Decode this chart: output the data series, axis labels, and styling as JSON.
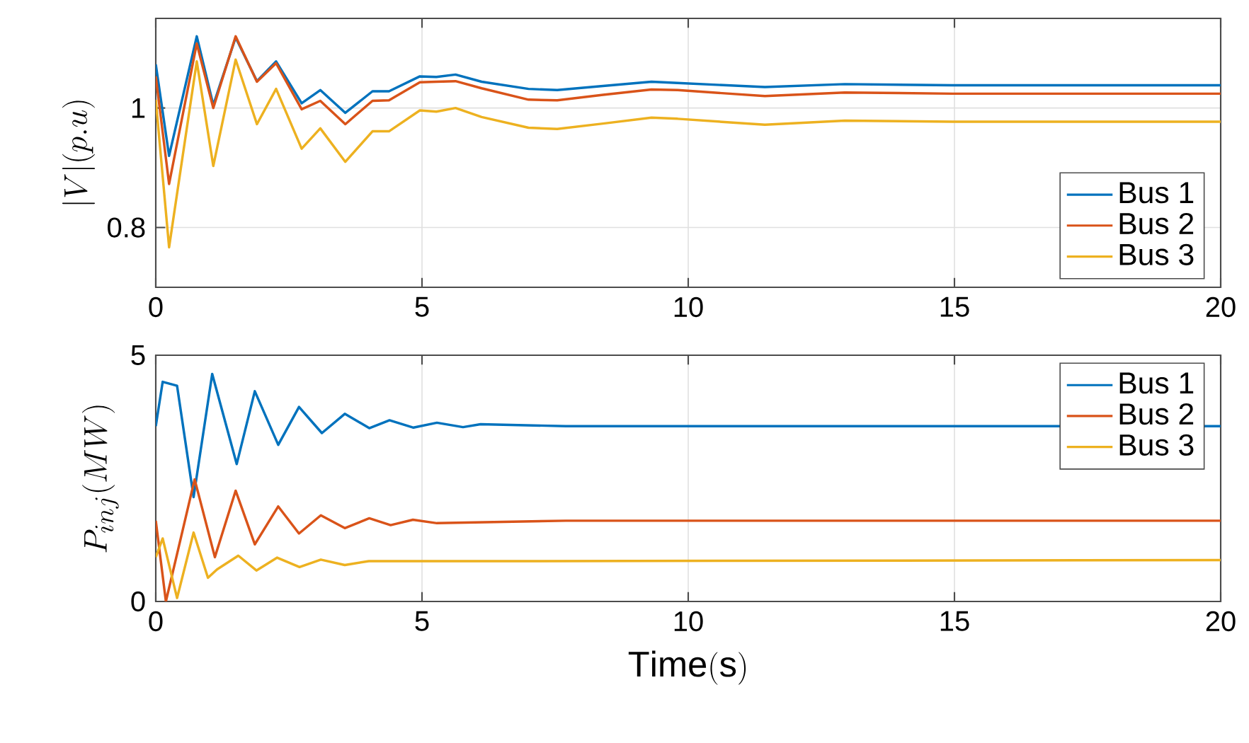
{
  "chart_data": [
    {
      "type": "line",
      "ylabel": "|V|(p.u)",
      "xlim": [
        0,
        20
      ],
      "ylim": [
        0.7,
        1.15
      ],
      "xticks": [
        0,
        5,
        10,
        15,
        20
      ],
      "yticks": [
        0.8,
        1
      ],
      "grid": true,
      "legend": "bottom right",
      "line_style": "solid",
      "x": [
        0,
        0.25,
        0.77,
        1.08,
        1.5,
        1.9,
        2.26,
        2.74,
        3.09,
        3.56,
        4.07,
        4.38,
        4.96,
        5.27,
        5.63,
        6.12,
        7.0,
        7.54,
        8.4,
        9.31,
        9.8,
        11.44,
        12.94,
        14.97,
        20
      ],
      "series": [
        {
          "name": "Bus 1",
          "color": "#0072bd",
          "values": [
            1.073,
            0.92,
            1.12,
            1.005,
            1.118,
            1.045,
            1.078,
            1.008,
            1.03,
            0.992,
            1.028,
            1.028,
            1.053,
            1.052,
            1.056,
            1.044,
            1.032,
            1.03,
            1.037,
            1.044,
            1.042,
            1.035,
            1.04,
            1.038,
            1.038
          ]
        },
        {
          "name": "Bus 2",
          "color": "#d95319",
          "values": [
            1.053,
            0.873,
            1.108,
            1.0,
            1.12,
            1.044,
            1.075,
            0.998,
            1.012,
            0.973,
            1.012,
            1.013,
            1.043,
            1.044,
            1.045,
            1.033,
            1.014,
            1.013,
            1.022,
            1.031,
            1.03,
            1.02,
            1.026,
            1.024,
            1.024
          ]
        },
        {
          "name": "Bus 3",
          "color": "#edb120",
          "values": [
            1.014,
            0.767,
            1.078,
            0.903,
            1.081,
            0.973,
            1.032,
            0.932,
            0.966,
            0.91,
            0.961,
            0.961,
            0.996,
            0.994,
            1.0,
            0.985,
            0.967,
            0.965,
            0.974,
            0.984,
            0.982,
            0.972,
            0.979,
            0.977,
            0.977
          ]
        }
      ]
    },
    {
      "type": "line",
      "xlabel": "Time(s)",
      "ylabel": "P_{inj}(MW)",
      "xlim": [
        0,
        20
      ],
      "ylim": [
        0,
        5
      ],
      "xticks": [
        0,
        5,
        10,
        15,
        20
      ],
      "yticks": [
        0,
        5
      ],
      "grid": true,
      "legend": "top right",
      "line_style": "solid",
      "series": [
        {
          "name": "Bus 1",
          "color": "#0072bd",
          "x": [
            0,
            0.13,
            0.4,
            0.71,
            1.06,
            1.52,
            1.86,
            2.3,
            2.69,
            3.12,
            3.55,
            4.01,
            4.39,
            4.84,
            5.28,
            5.77,
            6.1,
            7.7,
            20
          ],
          "values": [
            3.56,
            4.46,
            4.38,
            2.12,
            4.62,
            2.79,
            4.27,
            3.18,
            3.95,
            3.42,
            3.81,
            3.52,
            3.68,
            3.53,
            3.63,
            3.54,
            3.6,
            3.56,
            3.56
          ]
        },
        {
          "name": "Bus 2",
          "color": "#d95319",
          "x": [
            0,
            0.19,
            0.73,
            1.11,
            1.5,
            1.86,
            2.3,
            2.69,
            3.1,
            3.55,
            4.01,
            4.41,
            4.83,
            5.28,
            7.7,
            20
          ],
          "values": [
            1.64,
            0.0,
            2.48,
            0.9,
            2.25,
            1.16,
            1.93,
            1.38,
            1.75,
            1.49,
            1.69,
            1.55,
            1.66,
            1.59,
            1.64,
            1.64
          ]
        },
        {
          "name": "Bus 3",
          "color": "#edb120",
          "x": [
            0,
            0.13,
            0.4,
            0.71,
            0.98,
            1.15,
            1.55,
            1.89,
            2.28,
            2.7,
            3.1,
            3.55,
            4.0,
            7.0,
            20
          ],
          "values": [
            0.9,
            1.28,
            0.07,
            1.4,
            0.48,
            0.65,
            0.93,
            0.63,
            0.89,
            0.7,
            0.85,
            0.74,
            0.82,
            0.82,
            0.84
          ]
        }
      ]
    }
  ]
}
